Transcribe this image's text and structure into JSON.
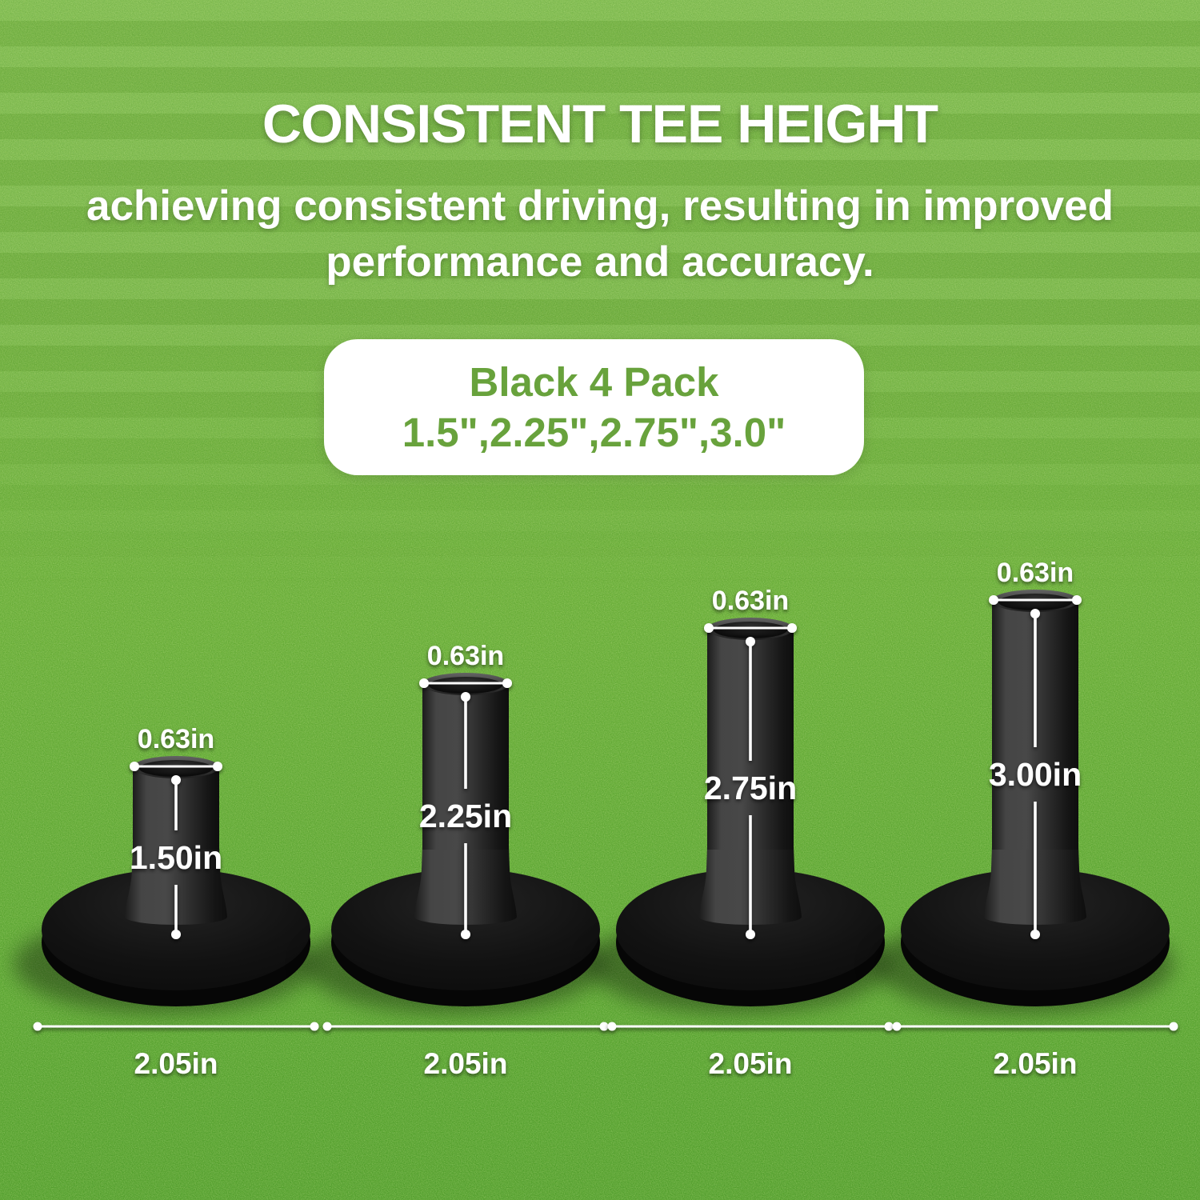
{
  "title": "CONSISTENT TEE HEIGHT",
  "subtitle": {
    "line1": "achieving consistent driving, resulting in improved",
    "line2": "performance and accuracy."
  },
  "badge": {
    "line1": "Black 4 Pack",
    "line2": "1.5\",2.25\",2.75\",3.0\""
  },
  "colors": {
    "badge_text": "#68a23c",
    "annotation_text": "#ffffff",
    "grass_top": "#7cba45",
    "grass_bottom": "#519e29",
    "tee_color": "#1a1a1a"
  },
  "tees": [
    {
      "id": "tee-1",
      "top_diameter_label": "0.63in",
      "height_label": "1.50in",
      "base_width_label": "2.05in",
      "height_in": 1.5
    },
    {
      "id": "tee-2",
      "top_diameter_label": "0.63in",
      "height_label": "2.25in",
      "base_width_label": "2.05in",
      "height_in": 2.25
    },
    {
      "id": "tee-3",
      "top_diameter_label": "0.63in",
      "height_label": "2.75in",
      "base_width_label": "2.05in",
      "height_in": 2.75
    },
    {
      "id": "tee-4",
      "top_diameter_label": "0.63in",
      "height_label": "3.00in",
      "base_width_label": "2.05in",
      "height_in": 3.0
    }
  ]
}
